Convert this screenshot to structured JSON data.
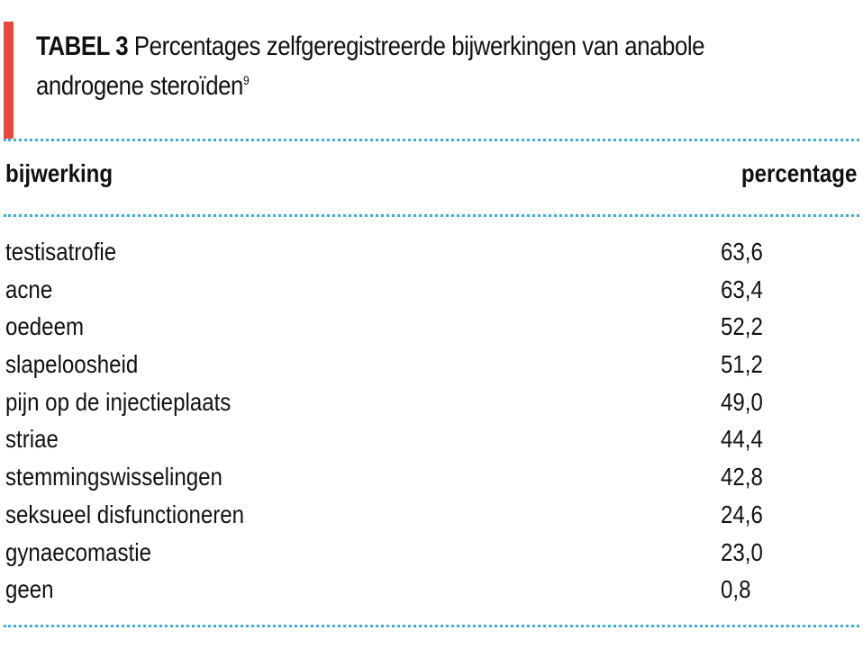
{
  "colors": {
    "accent": "#e8473d",
    "dotted_rule": "#3aaee0",
    "text": "#111111"
  },
  "title": {
    "label": "TABEL 3",
    "text": "Percentages zelfgeregistreerde bijwerkingen van anabole",
    "text_line2": "androgene steroïden",
    "reference": "9"
  },
  "table": {
    "headers": {
      "left": "bijwerking",
      "right": "percentage"
    },
    "rows": [
      {
        "bijwerking": "testisatrofie",
        "percentage": "63,6"
      },
      {
        "bijwerking": "acne",
        "percentage": "63,4"
      },
      {
        "bijwerking": "oedeem",
        "percentage": "52,2"
      },
      {
        "bijwerking": "slapeloosheid",
        "percentage": "51,2"
      },
      {
        "bijwerking": "pijn op de injectieplaats",
        "percentage": "49,0"
      },
      {
        "bijwerking": "striae",
        "percentage": "44,4"
      },
      {
        "bijwerking": "stemmingswisselingen",
        "percentage": "42,8"
      },
      {
        "bijwerking": "seksueel disfunctioneren",
        "percentage": "24,6"
      },
      {
        "bijwerking": "gynaecomastie",
        "percentage": "23,0"
      },
      {
        "bijwerking": "geen",
        "percentage": "0,8"
      }
    ]
  }
}
